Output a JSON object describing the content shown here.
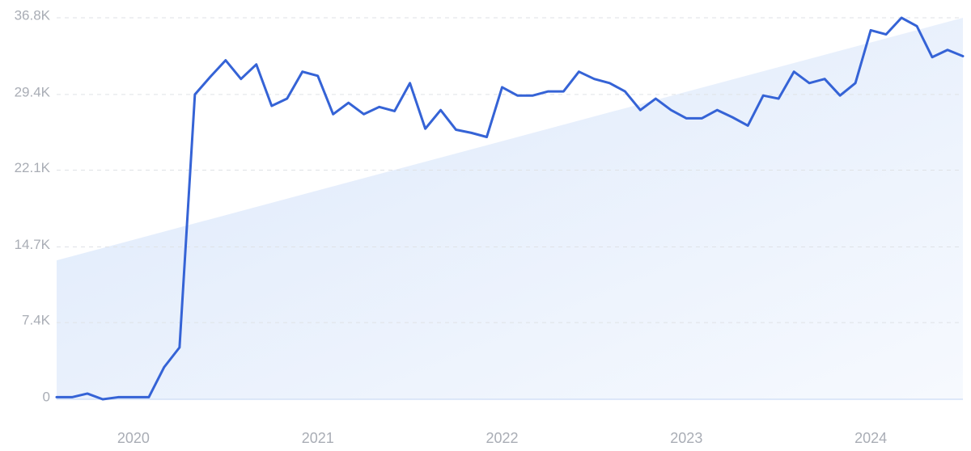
{
  "chart_data": {
    "type": "line",
    "categories": [
      null,
      null,
      null,
      null,
      null,
      "2020",
      null,
      null,
      null,
      null,
      null,
      null,
      null,
      null,
      null,
      null,
      null,
      "2021",
      null,
      null,
      null,
      null,
      null,
      null,
      null,
      null,
      null,
      null,
      null,
      "2022",
      null,
      null,
      null,
      null,
      null,
      null,
      null,
      null,
      null,
      null,
      null,
      "2023",
      null,
      null,
      null,
      null,
      null,
      null,
      null,
      null,
      null,
      null,
      null,
      "2024",
      null,
      null,
      null,
      null,
      null,
      null
    ],
    "series": [
      {
        "color": "#3563d6",
        "values": [
          200,
          200,
          550,
          0,
          200,
          200,
          200,
          3100,
          5000,
          29400,
          31100,
          32700,
          30900,
          32300,
          28300,
          29000,
          31600,
          31200,
          27500,
          28600,
          27500,
          28200,
          27800,
          30500,
          26100,
          27900,
          26000,
          25700,
          25300,
          30100,
          29300,
          29300,
          29700,
          29700,
          31600,
          30900,
          30500,
          29700,
          27900,
          29000,
          27900,
          27100,
          27100,
          27900,
          27200,
          26400,
          29300,
          29000,
          31600,
          30500,
          30900,
          29300,
          30500,
          35600,
          35200,
          36800,
          36000,
          33000,
          33700,
          33100
        ]
      }
    ],
    "trend": {
      "color": "#dce8fb",
      "values": [
        13400,
        36800
      ]
    },
    "ylim": [
      0,
      36800
    ],
    "yticks": [
      0,
      {
        "value": 7400,
        "label": "7.4K"
      },
      {
        "value": 14700,
        "label": "14.7K"
      },
      {
        "value": 22100,
        "label": "22.1K"
      },
      {
        "value": 29400,
        "label": "29.4K"
      },
      {
        "value": 36800,
        "label": "36.8K"
      }
    ],
    "grid": true
  }
}
